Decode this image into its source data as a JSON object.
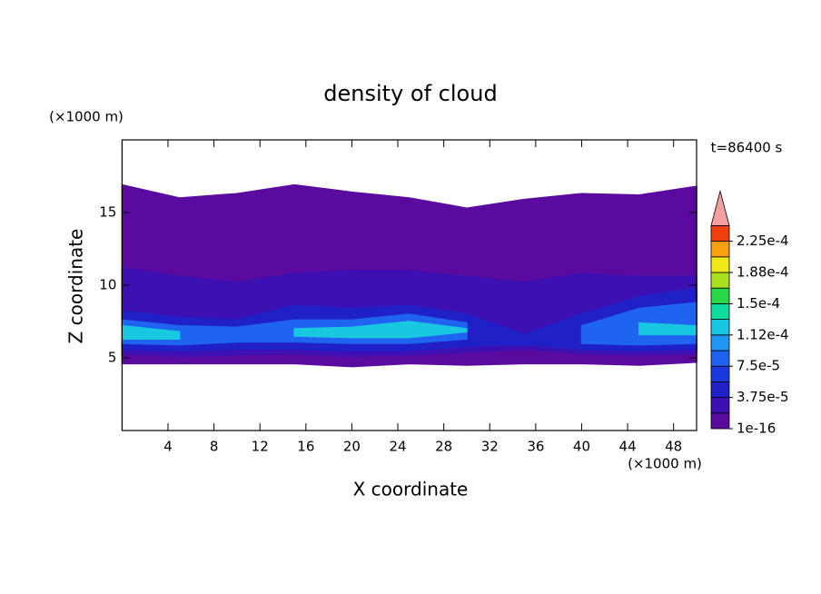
{
  "chart_data": {
    "type": "contour",
    "title": "density of cloud",
    "time_label": "t=86400 s",
    "x_label": "X coordinate",
    "y_label": "Z coordinate",
    "x_unit": "(×1000 m)",
    "y_unit": "(×1000 m)",
    "xlim": [
      0,
      50
    ],
    "ylim": [
      0,
      20
    ],
    "xticks": [
      4,
      8,
      12,
      16,
      20,
      24,
      28,
      32,
      36,
      40,
      44,
      48
    ],
    "yticks": [
      5,
      10,
      15
    ],
    "x": [
      0,
      5,
      10,
      15,
      20,
      25,
      30,
      35,
      40,
      45,
      50
    ],
    "layers": [
      {
        "level": 1e-16,
        "bottom": [
          4.6,
          4.6,
          4.6,
          4.6,
          4.4,
          4.6,
          4.5,
          4.6,
          4.6,
          4.5,
          4.7
        ],
        "top": [
          16.9,
          16,
          16.3,
          16.9,
          16.4,
          16,
          15.3,
          15.9,
          16.3,
          16.2,
          16.8
        ]
      },
      {
        "level": 1.875e-05,
        "bottom": [
          5.3,
          5.1,
          5.2,
          5.3,
          5.1,
          5.2,
          5.4,
          5.6,
          5.3,
          5.2,
          5.3
        ],
        "top": [
          11.2,
          10.6,
          10.2,
          10.8,
          11,
          11,
          10.6,
          10.2,
          10.8,
          10.6,
          10.6
        ]
      },
      {
        "level": 3.75e-05,
        "bottom": [
          5.6,
          5.5,
          5.6,
          5.6,
          5.5,
          5.5,
          5.8,
          5.9,
          5.6,
          5.5,
          5.6
        ],
        "top": [
          8.2,
          7.8,
          7.6,
          8.6,
          8.4,
          8.6,
          8,
          6.6,
          8,
          9.2,
          9.8
        ]
      },
      {
        "level": 7.5e-05,
        "bottom": [
          6,
          5.9,
          6.1,
          6.1,
          6,
          6,
          6.3,
          null,
          6,
          5.9,
          6
        ],
        "top": [
          7.6,
          7.2,
          7.1,
          7.6,
          7.6,
          8,
          7.4,
          null,
          7.2,
          8.4,
          8.8
        ]
      },
      {
        "level": 0.000112,
        "bottom": [
          6.3,
          6.3,
          null,
          6.5,
          6.4,
          6.4,
          6.8,
          null,
          null,
          6.6,
          6.6
        ],
        "top": [
          7.2,
          6.8,
          null,
          7,
          7.1,
          7.5,
          7,
          null,
          null,
          7.4,
          7.2
        ]
      }
    ],
    "colorbar": {
      "levels": [
        1e-16,
        1.875e-05,
        3.75e-05,
        5.625e-05,
        7.5e-05,
        9.375e-05,
        0.000112,
        0.00013125,
        0.00015,
        0.00016875,
        0.000188,
        0.00020625,
        0.000225
      ],
      "colors": [
        "#5a0a9e",
        "#3d10b4",
        "#2020c8",
        "#1a3ae0",
        "#1e64f0",
        "#2096f4",
        "#18c8e0",
        "#10dca0",
        "#28d848",
        "#a8e020",
        "#f0e818",
        "#f8a010",
        "#f04010"
      ],
      "extend_color": "#f4a0a0",
      "ticks": [
        {
          "value": 1e-16,
          "label": "1e-16"
        },
        {
          "value": 3.75e-05,
          "label": "3.75e-5"
        },
        {
          "value": 7.5e-05,
          "label": "7.5e-5"
        },
        {
          "value": 0.000112,
          "label": "1.12e-4"
        },
        {
          "value": 0.00015,
          "label": "1.5e-4"
        },
        {
          "value": 0.000188,
          "label": "1.88e-4"
        },
        {
          "value": 0.000225,
          "label": "2.25e-4"
        }
      ]
    }
  }
}
